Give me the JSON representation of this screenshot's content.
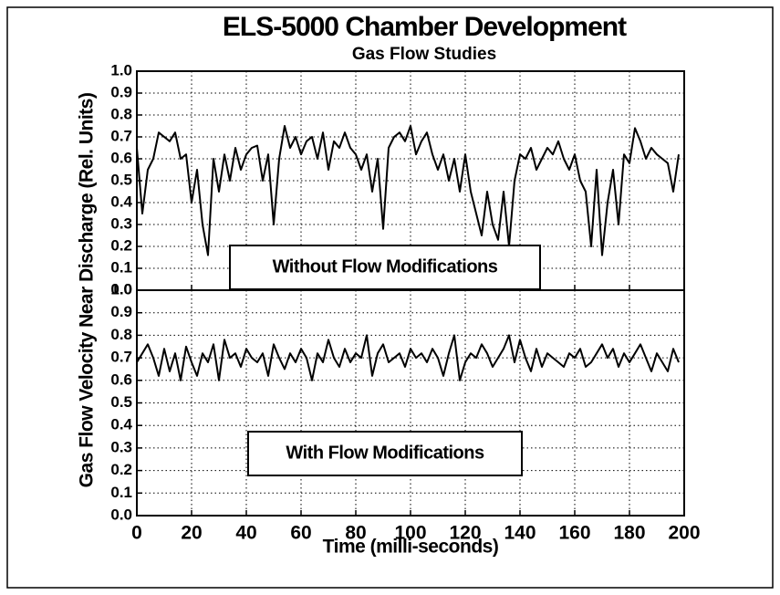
{
  "chart_data": [
    {
      "type": "line",
      "title": "ELS-5000 Chamber Development",
      "subtitle": "Gas Flow Studies",
      "ylabel": "Gas Flow Velocity Near Discharge (Rel. Units)",
      "annotation": "Without Flow Modifications",
      "color": "#000000",
      "grid": true,
      "xlim": [
        0,
        200
      ],
      "xticks": [
        0,
        20,
        40,
        60,
        80,
        100,
        120,
        140,
        160,
        180,
        200
      ],
      "ylim": [
        0,
        1
      ],
      "yticks": [
        {
          "value": 0,
          "label": "0.0"
        },
        {
          "value": 0.1,
          "label": "0.1"
        },
        {
          "value": 0.2,
          "label": "0.2"
        },
        {
          "value": 0.3,
          "label": "0.3"
        },
        {
          "value": 0.4,
          "label": "0.4"
        },
        {
          "value": 0.5,
          "label": "0.5"
        },
        {
          "value": 0.6,
          "label": "0.6"
        },
        {
          "value": 0.7,
          "label": "0.7"
        },
        {
          "value": 0.8,
          "label": "0.8"
        },
        {
          "value": 0.9,
          "label": "0.9"
        },
        {
          "value": 1,
          "label": "1.0"
        }
      ],
      "x": [
        0,
        2,
        4,
        6,
        8,
        10,
        12,
        14,
        16,
        18,
        20,
        22,
        24,
        26,
        28,
        30,
        32,
        34,
        36,
        38,
        40,
        42,
        44,
        46,
        48,
        50,
        52,
        54,
        56,
        58,
        60,
        62,
        64,
        66,
        68,
        70,
        72,
        74,
        76,
        78,
        80,
        82,
        84,
        86,
        88,
        90,
        92,
        94,
        96,
        98,
        100,
        102,
        104,
        106,
        108,
        110,
        112,
        114,
        116,
        118,
        120,
        122,
        124,
        126,
        128,
        130,
        132,
        134,
        136,
        138,
        140,
        142,
        144,
        146,
        148,
        150,
        152,
        154,
        156,
        158,
        160,
        162,
        164,
        166,
        168,
        170,
        172,
        174,
        176,
        178,
        180,
        182,
        184,
        186,
        188,
        190,
        192,
        194,
        196,
        198
      ],
      "values": [
        0.65,
        0.35,
        0.55,
        0.6,
        0.72,
        0.7,
        0.68,
        0.72,
        0.6,
        0.62,
        0.4,
        0.55,
        0.3,
        0.16,
        0.6,
        0.45,
        0.62,
        0.5,
        0.65,
        0.55,
        0.62,
        0.65,
        0.66,
        0.5,
        0.62,
        0.3,
        0.6,
        0.75,
        0.65,
        0.7,
        0.62,
        0.68,
        0.7,
        0.6,
        0.72,
        0.55,
        0.68,
        0.65,
        0.72,
        0.65,
        0.62,
        0.55,
        0.62,
        0.45,
        0.6,
        0.28,
        0.65,
        0.7,
        0.72,
        0.68,
        0.75,
        0.62,
        0.68,
        0.72,
        0.62,
        0.55,
        0.62,
        0.5,
        0.6,
        0.45,
        0.62,
        0.45,
        0.35,
        0.25,
        0.45,
        0.3,
        0.23,
        0.45,
        0.2,
        0.5,
        0.62,
        0.6,
        0.65,
        0.55,
        0.6,
        0.65,
        0.62,
        0.68,
        0.6,
        0.55,
        0.62,
        0.5,
        0.45,
        0.2,
        0.55,
        0.16,
        0.4,
        0.55,
        0.3,
        0.62,
        0.58,
        0.74,
        0.68,
        0.6,
        0.65,
        0.62,
        0.6,
        0.58,
        0.45,
        0.62
      ]
    },
    {
      "type": "line",
      "xlabel": "Time (milli-seconds)",
      "annotation": "With Flow Modifications",
      "color": "#000000",
      "grid": true,
      "xlim": [
        0,
        200
      ],
      "xticks": [
        0,
        20,
        40,
        60,
        80,
        100,
        120,
        140,
        160,
        180,
        200
      ],
      "ylim": [
        0,
        1
      ],
      "yticks": [
        {
          "value": 0,
          "label": "0.0"
        },
        {
          "value": 0.1,
          "label": "0.1"
        },
        {
          "value": 0.2,
          "label": "0.2"
        },
        {
          "value": 0.3,
          "label": "0.3"
        },
        {
          "value": 0.4,
          "label": "0.4"
        },
        {
          "value": 0.5,
          "label": "0.5"
        },
        {
          "value": 0.6,
          "label": "0.6"
        },
        {
          "value": 0.7,
          "label": "0.7"
        },
        {
          "value": 0.8,
          "label": "0.8"
        },
        {
          "value": 0.9,
          "label": "0.9"
        },
        {
          "value": 1,
          "label": "1.0"
        }
      ],
      "x": [
        0,
        2,
        4,
        6,
        8,
        10,
        12,
        14,
        16,
        18,
        20,
        22,
        24,
        26,
        28,
        30,
        32,
        34,
        36,
        38,
        40,
        42,
        44,
        46,
        48,
        50,
        52,
        54,
        56,
        58,
        60,
        62,
        64,
        66,
        68,
        70,
        72,
        74,
        76,
        78,
        80,
        82,
        84,
        86,
        88,
        90,
        92,
        94,
        96,
        98,
        100,
        102,
        104,
        106,
        108,
        110,
        112,
        114,
        116,
        118,
        120,
        122,
        124,
        126,
        128,
        130,
        132,
        134,
        136,
        138,
        140,
        142,
        144,
        146,
        148,
        150,
        152,
        154,
        156,
        158,
        160,
        162,
        164,
        166,
        168,
        170,
        172,
        174,
        176,
        178,
        180,
        182,
        184,
        186,
        188,
        190,
        192,
        194,
        196,
        198
      ],
      "values": [
        0.68,
        0.72,
        0.76,
        0.7,
        0.62,
        0.74,
        0.64,
        0.72,
        0.6,
        0.75,
        0.68,
        0.62,
        0.72,
        0.68,
        0.76,
        0.6,
        0.78,
        0.7,
        0.72,
        0.66,
        0.74,
        0.7,
        0.68,
        0.72,
        0.62,
        0.76,
        0.7,
        0.65,
        0.72,
        0.68,
        0.74,
        0.7,
        0.6,
        0.72,
        0.68,
        0.78,
        0.7,
        0.66,
        0.74,
        0.68,
        0.72,
        0.7,
        0.8,
        0.62,
        0.72,
        0.76,
        0.68,
        0.7,
        0.72,
        0.66,
        0.74,
        0.7,
        0.72,
        0.68,
        0.74,
        0.7,
        0.62,
        0.72,
        0.8,
        0.6,
        0.68,
        0.72,
        0.7,
        0.76,
        0.72,
        0.66,
        0.7,
        0.74,
        0.8,
        0.68,
        0.78,
        0.7,
        0.64,
        0.74,
        0.66,
        0.72,
        0.7,
        0.68,
        0.66,
        0.72,
        0.7,
        0.74,
        0.66,
        0.68,
        0.72,
        0.76,
        0.7,
        0.74,
        0.66,
        0.72,
        0.68,
        0.72,
        0.76,
        0.7,
        0.64,
        0.72,
        0.68,
        0.64,
        0.74,
        0.68
      ]
    }
  ]
}
